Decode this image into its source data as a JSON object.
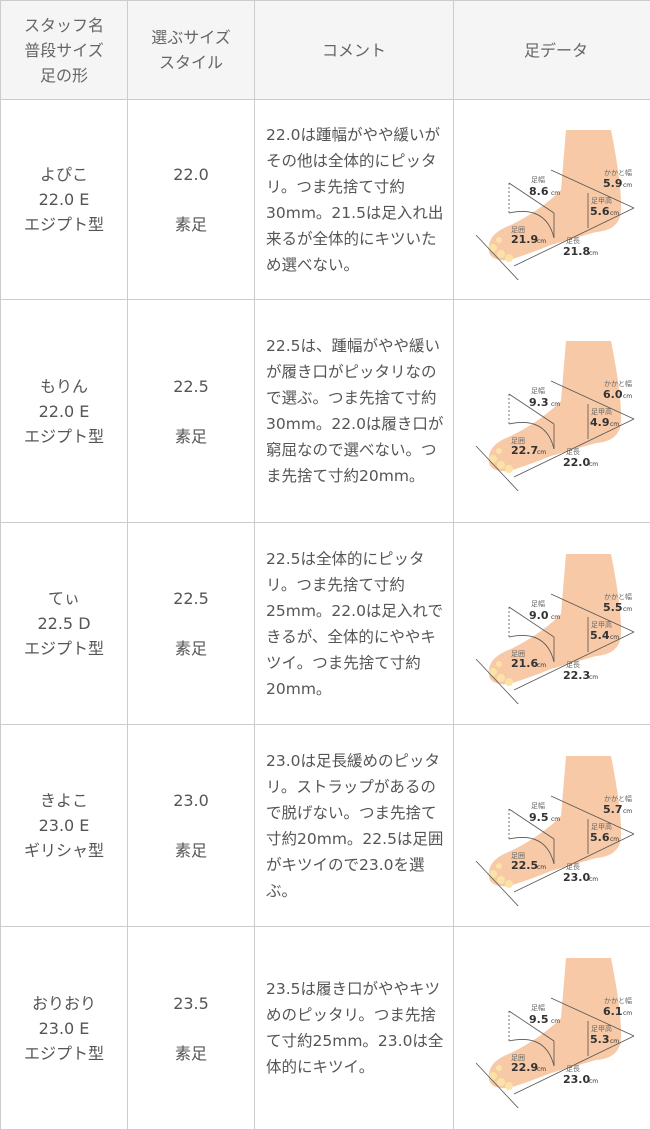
{
  "header": {
    "col1": [
      "スタッフ名",
      "普段サイズ",
      "足の形"
    ],
    "col2": [
      "選ぶサイズ",
      "スタイル"
    ],
    "col3": "コメント",
    "col4": "足データ"
  },
  "foot_labels": {
    "width": "足幅",
    "heel": "かかと幅",
    "instep": "足甲高",
    "girth": "足囲",
    "length": "足長",
    "unit": "cm"
  },
  "rows": [
    {
      "name": "よぴこ",
      "usual": "22.0 E",
      "shape": "エジプト型",
      "size": "22.0",
      "style": "素足",
      "comment": "22.0は踵幅がやや緩いがその他は全体的にピッタリ。つま先捨て寸約30mm。21.5は足入れ出来るが全体的にキツいため選べない。",
      "foot": {
        "width": "8.6",
        "heel": "5.9",
        "instep": "5.6",
        "girth": "21.9",
        "length": "21.8"
      }
    },
    {
      "name": "もりん",
      "usual": "22.0 E",
      "shape": "エジプト型",
      "size": "22.5",
      "style": "素足",
      "comment": "22.5は、踵幅がやや緩いが履き口がピッタリなので選ぶ。つま先捨て寸約30mm。22.0は履き口が窮屈なので選べない。つま先捨て寸約20mm。",
      "foot": {
        "width": "9.3",
        "heel": "6.0",
        "instep": "4.9",
        "girth": "22.7",
        "length": "22.0"
      }
    },
    {
      "name": "てぃ",
      "usual": "22.5 D",
      "shape": "エジプト型",
      "size": "22.5",
      "style": "素足",
      "comment": "22.5は全体的にピッタリ。つま先捨て寸約25mm。22.0は足入れできるが、全体的にややキツイ。つま先捨て寸約20mm。",
      "foot": {
        "width": "9.0",
        "heel": "5.5",
        "instep": "5.4",
        "girth": "21.6",
        "length": "22.3"
      }
    },
    {
      "name": "きよこ",
      "usual": "23.0 E",
      "shape": "ギリシャ型",
      "size": "23.0",
      "style": "素足",
      "comment": "23.0は足長緩めのピッタリ。ストラップがあるので脱げない。つま先捨て寸約20mm。22.5は足囲がキツイので23.0を選ぶ。",
      "foot": {
        "width": "9.5",
        "heel": "5.7",
        "instep": "5.6",
        "girth": "22.5",
        "length": "23.0"
      }
    },
    {
      "name": "おりおり",
      "usual": "23.0 E",
      "shape": "エジプト型",
      "size": "23.5",
      "style": "素足",
      "comment": "23.5は履き口がややキツめのピッタリ。つま先捨て寸約25mm。23.0は全体的にキツイ。",
      "foot": {
        "width": "9.5",
        "heel": "6.1",
        "instep": "5.3",
        "girth": "22.9",
        "length": "23.0"
      }
    }
  ]
}
